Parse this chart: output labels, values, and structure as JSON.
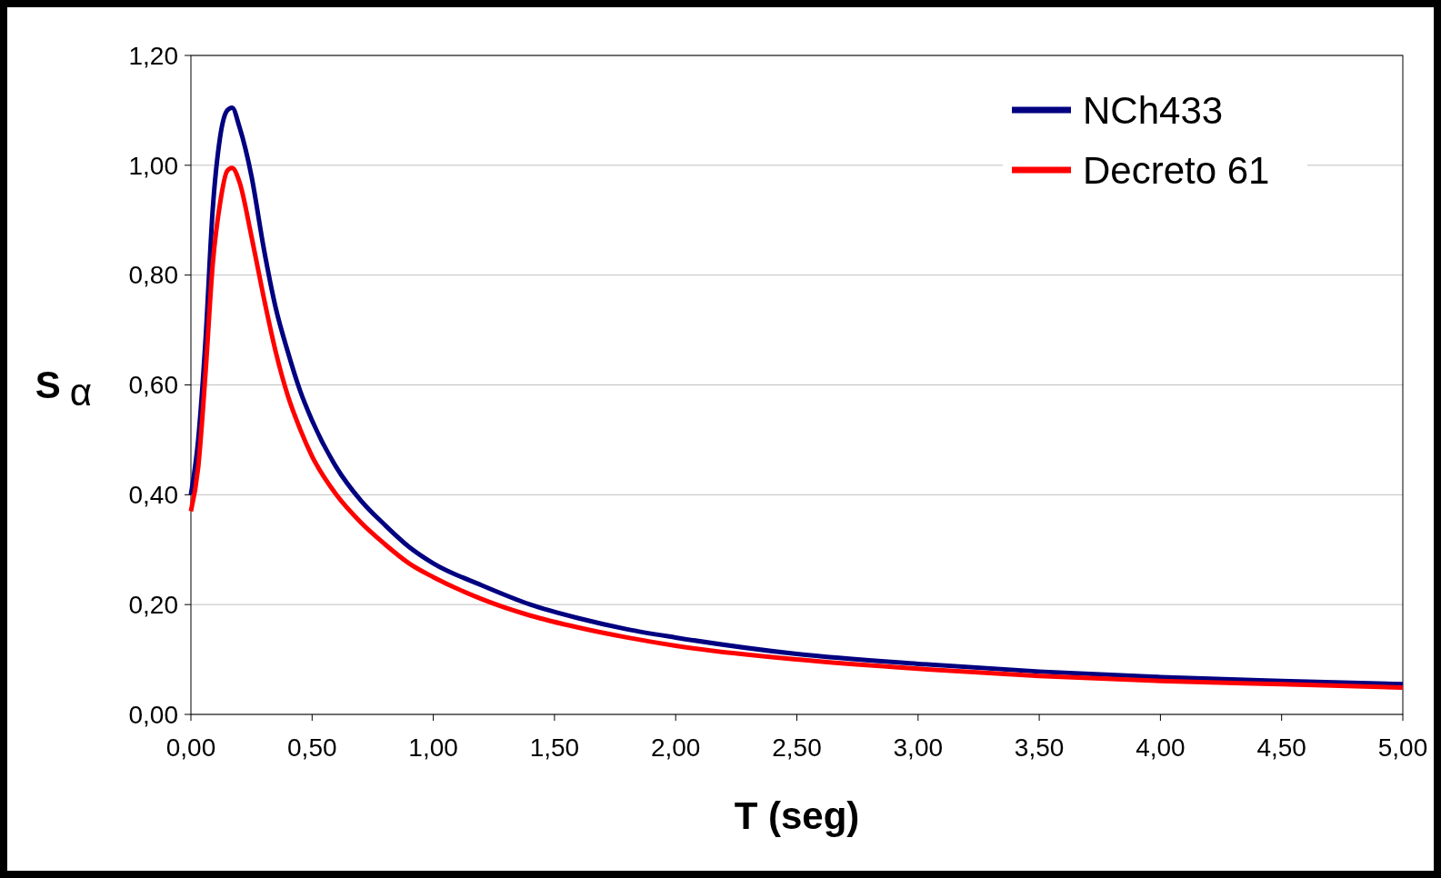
{
  "chart_data": {
    "type": "line",
    "xlabel": "T (seg)",
    "ylabel": "S α",
    "xlim": [
      0,
      5
    ],
    "ylim": [
      0,
      1.2
    ],
    "xticks": [
      {
        "value": 0,
        "label": "0,00"
      },
      {
        "value": 0.5,
        "label": "0,50"
      },
      {
        "value": 1,
        "label": "1,00"
      },
      {
        "value": 1.5,
        "label": "1,50"
      },
      {
        "value": 2,
        "label": "2,00"
      },
      {
        "value": 2.5,
        "label": "2,50"
      },
      {
        "value": 3,
        "label": "3,00"
      },
      {
        "value": 3.5,
        "label": "3,50"
      },
      {
        "value": 4,
        "label": "4,00"
      },
      {
        "value": 4.5,
        "label": "4,50"
      },
      {
        "value": 5,
        "label": "5,00"
      }
    ],
    "yticks": [
      {
        "value": 0,
        "label": "0,00"
      },
      {
        "value": 0.2,
        "label": "0,20"
      },
      {
        "value": 0.4,
        "label": "0,40"
      },
      {
        "value": 0.6,
        "label": "0,60"
      },
      {
        "value": 0.8,
        "label": "0,80"
      },
      {
        "value": 1,
        "label": "1,00"
      },
      {
        "value": 1.2,
        "label": "1,20"
      }
    ],
    "grid": "y",
    "legend": "top right",
    "marker": "none",
    "line_style": "solid",
    "x": [
      0,
      0.03,
      0.06,
      0.09,
      0.12,
      0.15,
      0.17,
      0.2,
      0.25,
      0.3,
      0.35,
      0.4,
      0.45,
      0.5,
      0.6,
      0.7,
      0.8,
      0.9,
      1.0,
      1.2,
      1.4,
      1.6,
      1.8,
      2.0,
      2.5,
      3.0,
      3.5,
      4.0,
      4.5,
      5.0
    ],
    "series": [
      {
        "name": "NCh433",
        "color": "#000080",
        "values": [
          0.4,
          0.5,
          0.68,
          0.92,
          1.05,
          1.1,
          1.105,
          1.07,
          0.98,
          0.85,
          0.74,
          0.66,
          0.59,
          0.535,
          0.45,
          0.39,
          0.345,
          0.305,
          0.275,
          0.235,
          0.2,
          0.175,
          0.155,
          0.14,
          0.11,
          0.092,
          0.078,
          0.068,
          0.061,
          0.055
        ]
      },
      {
        "name": "Decreto 61",
        "color": "#ff0000",
        "values": [
          0.37,
          0.45,
          0.62,
          0.82,
          0.93,
          0.99,
          0.995,
          0.97,
          0.87,
          0.76,
          0.66,
          0.58,
          0.52,
          0.47,
          0.4,
          0.35,
          0.31,
          0.275,
          0.25,
          0.21,
          0.18,
          0.158,
          0.14,
          0.125,
          0.1,
          0.083,
          0.07,
          0.061,
          0.055,
          0.049
        ]
      }
    ]
  }
}
